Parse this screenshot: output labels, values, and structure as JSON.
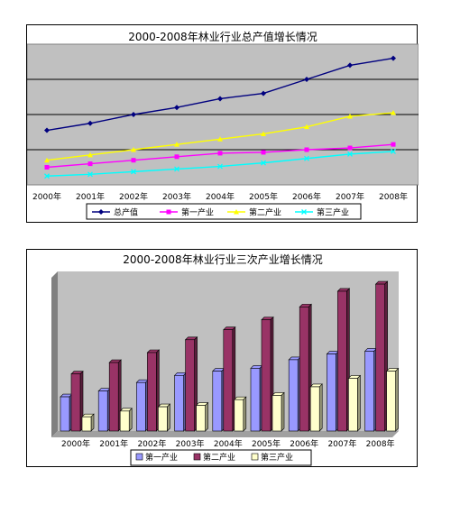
{
  "chart_data": [
    {
      "type": "line",
      "title": "2000-2008年林业行业总产值增长情况",
      "categories": [
        "2000年",
        "2001年",
        "2002年",
        "2003年",
        "2004年",
        "2005年",
        "2006年",
        "2007年",
        "2008年"
      ],
      "series": [
        {
          "name": "总产值",
          "color": "#00007f",
          "marker": "diamond",
          "values": [
            3.1,
            3.5,
            4.0,
            4.4,
            4.9,
            5.2,
            6.0,
            6.8,
            7.2
          ]
        },
        {
          "name": "第一产业",
          "color": "#ff00ff",
          "marker": "square",
          "values": [
            1.0,
            1.2,
            1.4,
            1.6,
            1.8,
            1.85,
            2.0,
            2.1,
            2.3
          ]
        },
        {
          "name": "第二产业",
          "color": "#ffff00",
          "marker": "triangle",
          "values": [
            1.4,
            1.7,
            2.0,
            2.3,
            2.6,
            2.9,
            3.3,
            3.9,
            4.1
          ]
        },
        {
          "name": "第三产业",
          "color": "#00ffff",
          "marker": "x",
          "values": [
            0.5,
            0.6,
            0.75,
            0.9,
            1.05,
            1.25,
            1.5,
            1.75,
            1.9
          ]
        }
      ],
      "ylim": [
        0,
        8
      ],
      "grid": true,
      "legend": "bottom"
    },
    {
      "type": "bar",
      "title": "2000-2008年林业行业三次产业增长情况",
      "categories": [
        "2000年",
        "2001年",
        "2002年",
        "2003年",
        "2004年",
        "2005年",
        "2006年",
        "2007年",
        "2008年"
      ],
      "series": [
        {
          "name": "第一产业",
          "color": "#9999ff",
          "values": [
            0.24,
            0.28,
            0.34,
            0.39,
            0.42,
            0.44,
            0.5,
            0.54,
            0.56
          ]
        },
        {
          "name": "第二产业",
          "color": "#993366",
          "values": [
            0.4,
            0.48,
            0.55,
            0.64,
            0.71,
            0.78,
            0.87,
            0.98,
            1.03
          ]
        },
        {
          "name": "第三产业",
          "color": "#ffffcc",
          "values": [
            0.1,
            0.14,
            0.17,
            0.18,
            0.22,
            0.25,
            0.31,
            0.37,
            0.42
          ]
        }
      ],
      "ylim": [
        0,
        1.1
      ],
      "grid": false,
      "legend": "bottom"
    }
  ]
}
